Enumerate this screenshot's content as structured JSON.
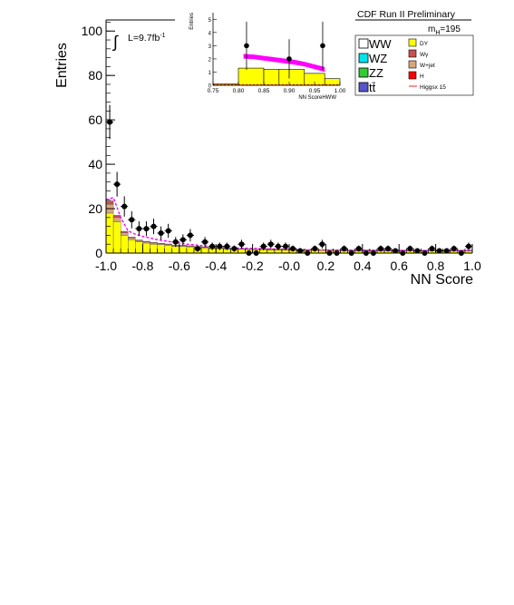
{
  "chart_data": [
    {
      "type": "bar",
      "title": "",
      "xlabel": "NN Score",
      "ylabel": "Entries",
      "xlim": [
        -1.0,
        1.0
      ],
      "ylim": [
        0,
        105
      ],
      "x_ticks": [
        "-1.0",
        "-0.8",
        "-0.6",
        "-0.4",
        "-0.2",
        "-0.0",
        "0.2",
        "0.4",
        "0.6",
        "0.8",
        "1.0"
      ],
      "y_ticks": [
        "0",
        "20",
        "40",
        "60",
        "80",
        "100"
      ],
      "lumi_prefix": "L=9.7fb",
      "lumi_superscript": "-1",
      "bin_edges_start": -1.0,
      "bin_width": 0.04,
      "series": [
        {
          "name": "DY",
          "color": "#ffff00",
          "values": [
            18,
            14,
            8,
            6,
            5,
            4.5,
            4,
            3.8,
            3.5,
            3,
            3,
            2.8,
            2.5,
            2.3,
            2,
            2,
            1.8,
            1.8,
            1.7,
            1.6,
            1.5,
            1.5,
            1.4,
            1.4,
            1.3,
            1.3,
            1.2,
            1.2,
            1.2,
            1.1,
            1.1,
            1.1,
            1,
            1,
            1,
            1,
            1,
            1,
            1,
            1,
            1,
            1,
            1,
            1,
            1,
            1,
            1,
            1,
            1,
            1
          ]
        },
        {
          "name": "W+jet",
          "color": "#d8a77c",
          "values": [
            4,
            2,
            1.2,
            0.8,
            0.6,
            0.5,
            0.5,
            0.4,
            0.4,
            0.3,
            0.3,
            0.3,
            0.3,
            0.3,
            0.2,
            0.2,
            0.2,
            0.2,
            0.2,
            0.2,
            0.2,
            0.2,
            0.2,
            0.2,
            0.2,
            0.2,
            0.2,
            0.2,
            0.2,
            0.2,
            0.2,
            0.2,
            0.2,
            0.2,
            0.2,
            0.2,
            0.2,
            0.2,
            0.2,
            0.2,
            0.2,
            0.2,
            0.2,
            0.2,
            0.2,
            0.2,
            0.2,
            0.2,
            0.2,
            0.2
          ]
        },
        {
          "name": "Wγ",
          "color": "#c85050",
          "values": [
            1.5,
            1,
            0.6,
            0.4,
            0.3,
            0.3,
            0.3,
            0.2,
            0.2,
            0.2,
            0.2,
            0.2,
            0.2,
            0.2,
            0.2,
            0.1,
            0.1,
            0.1,
            0.1,
            0.1,
            0.1,
            0.1,
            0.1,
            0.1,
            0.1,
            0.1,
            0.1,
            0.1,
            0.1,
            0.1,
            0.1,
            0.1,
            0.1,
            0.1,
            0.1,
            0.1,
            0.1,
            0.1,
            0.1,
            0.1,
            0.1,
            0.1,
            0.1,
            0.1,
            0.1,
            0.1,
            0.1,
            0.1,
            0.1,
            0.1
          ]
        }
      ],
      "signal_curve": {
        "name": "Higgsx 15",
        "color": "#ff00ff",
        "x": [
          -1.0,
          -0.96,
          -0.92,
          -0.88,
          -0.84,
          -0.8,
          -0.76,
          -0.72,
          -0.68,
          -0.64,
          -0.6,
          -0.56,
          -0.52,
          -0.48,
          -0.44,
          -0.4,
          -0.36,
          -0.32,
          -0.28,
          -0.24,
          -0.2,
          -0.16,
          -0.12,
          -0.08,
          -0.04,
          0.0,
          0.2,
          0.4,
          0.6,
          0.8,
          1.0
        ],
        "y": [
          24,
          25,
          16,
          10,
          8.5,
          7.5,
          6.8,
          6,
          5.5,
          5,
          4.5,
          4,
          3.7,
          3.4,
          3.1,
          2.9,
          2.7,
          2.5,
          2.3,
          2.2,
          2.1,
          2,
          1.9,
          1.8,
          1.7,
          1.6,
          1.4,
          1.3,
          1.2,
          1.1,
          1
        ]
      },
      "data_points": {
        "x": [
          -0.98,
          -0.94,
          -0.9,
          -0.86,
          -0.82,
          -0.78,
          -0.74,
          -0.7,
          -0.66,
          -0.62,
          -0.58,
          -0.54,
          -0.5,
          -0.46,
          -0.42,
          -0.38,
          -0.34,
          -0.3,
          -0.26,
          -0.22,
          -0.18,
          -0.14,
          -0.1,
          -0.06,
          -0.02,
          0.02,
          0.06,
          0.1,
          0.14,
          0.18,
          0.22,
          0.26,
          0.3,
          0.34,
          0.38,
          0.42,
          0.46,
          0.5,
          0.54,
          0.58,
          0.62,
          0.66,
          0.7,
          0.74,
          0.78,
          0.82,
          0.86,
          0.9,
          0.94,
          0.98
        ],
        "y": [
          59,
          31,
          21,
          15,
          11,
          11,
          12,
          9,
          10,
          5,
          6,
          8,
          2,
          5,
          3,
          3,
          3,
          2,
          4,
          0,
          0,
          3,
          4,
          3,
          3,
          2,
          1,
          0,
          2,
          4,
          0,
          0,
          2,
          0,
          2,
          0,
          0,
          2,
          2,
          1,
          0,
          2,
          1,
          0,
          2,
          1,
          1,
          2,
          0,
          3
        ]
      }
    },
    {
      "type": "bar",
      "title": "",
      "xlabel": "NN ScoreHWW",
      "ylabel": "Entries",
      "xlim": [
        0.75,
        1.0
      ],
      "ylim": [
        0,
        5.5
      ],
      "x_ticks": [
        "0.75",
        "0.80",
        "0.85",
        "0.90",
        "0.95",
        "1.00"
      ],
      "y_ticks": [
        "0",
        "1",
        "2",
        "3",
        "4",
        "5"
      ],
      "bins": [
        {
          "x0": 0.75,
          "x1": 0.8,
          "value": 0.1
        },
        {
          "x0": 0.8,
          "x1": 0.85,
          "value": 1.3
        },
        {
          "x0": 0.85,
          "x1": 0.88,
          "value": 1.2
        },
        {
          "x0": 0.88,
          "x1": 0.93,
          "value": 1.2
        },
        {
          "x0": 0.93,
          "x1": 0.97,
          "value": 0.9
        },
        {
          "x0": 0.97,
          "x1": 1.0,
          "value": 0.5
        }
      ],
      "signal_band": {
        "x": [
          0.81,
          0.83,
          0.85,
          0.87,
          0.89,
          0.91,
          0.93,
          0.95,
          0.97
        ],
        "y": [
          2.2,
          2.15,
          2.05,
          1.95,
          1.85,
          1.75,
          1.6,
          1.4,
          1.2
        ]
      },
      "data_points": {
        "x": [
          0.816,
          0.9,
          0.966
        ],
        "y": [
          3,
          2,
          3
        ]
      }
    }
  ],
  "header": {
    "experiment_label": "CDF Run II Preliminary",
    "mass_label": "m",
    "mass_subscript": "H",
    "mass_value": "=195"
  },
  "legend": {
    "left": [
      {
        "label": "WW",
        "color": "#ffffff"
      },
      {
        "label": "WZ",
        "color": "#00e5ee"
      },
      {
        "label": "ZZ",
        "color": "#33cc33"
      },
      {
        "label": "tt̄",
        "color": "#5555cc"
      }
    ],
    "right": [
      {
        "label": "DY",
        "color": "#ffff00",
        "style": "box"
      },
      {
        "label": "Wγ",
        "color": "#c85050",
        "style": "box"
      },
      {
        "label": "W+jet",
        "color": "#d8a77c",
        "style": "box"
      },
      {
        "label": "H",
        "color": "#ff0000",
        "style": "box"
      },
      {
        "label": "Higgsx 15",
        "color": "#ff4444",
        "style": "line"
      }
    ]
  }
}
